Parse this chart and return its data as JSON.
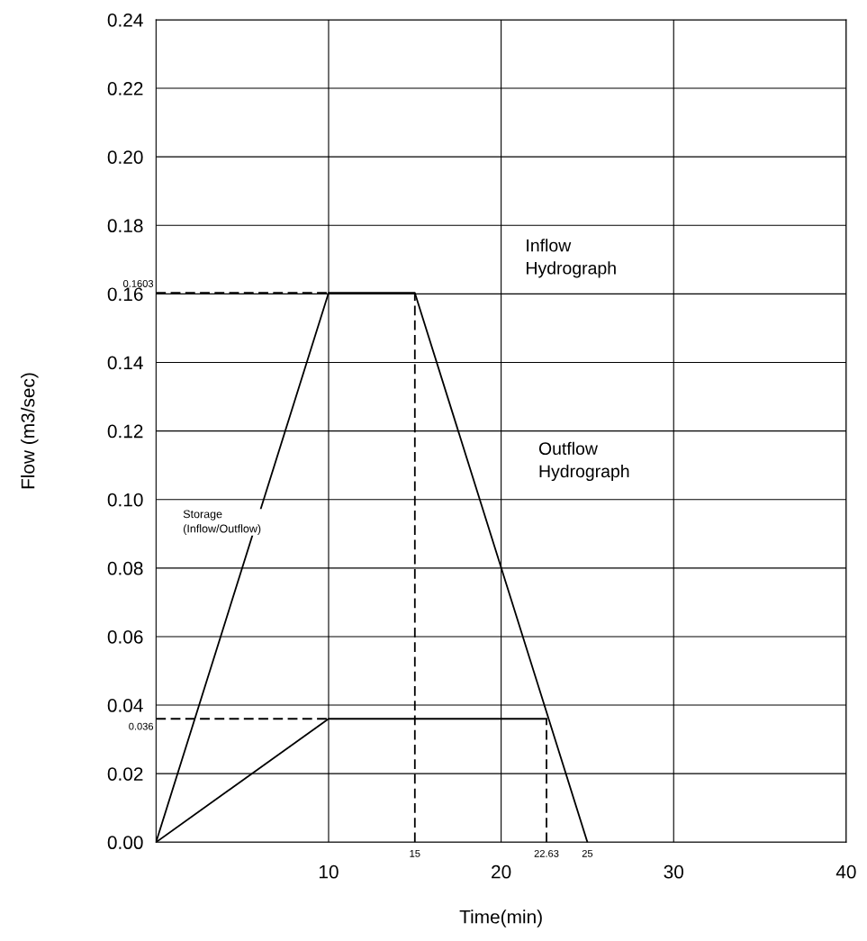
{
  "chart_data": {
    "type": "line",
    "xlabel": "Time(min)",
    "ylabel": "Flow (m3/sec)",
    "xlim": [
      0,
      40
    ],
    "xticks": [
      10,
      20,
      30,
      40
    ],
    "ylim": [
      0,
      0.24
    ],
    "yticks": [
      {
        "value": 0,
        "label": "0.00"
      },
      0.02,
      0.04,
      0.06,
      0.08,
      {
        "value": 0.1,
        "label": "0.10"
      },
      0.12,
      0.14,
      0.16,
      0.18,
      {
        "value": 0.2,
        "label": "0.20"
      },
      0.22,
      0.24
    ],
    "grid": true,
    "marker": "none",
    "series": [
      {
        "color": "#000000",
        "line_style": "solid",
        "x": [
          0,
          10,
          15,
          25
        ],
        "values": [
          0,
          0.1603,
          0.1603,
          0
        ]
      },
      {
        "color": "#000000",
        "line_style": "solid",
        "x": [
          0,
          10,
          22.63
        ],
        "values": [
          0,
          0.036,
          0.036
        ]
      },
      {
        "color": "#000000",
        "line_style": "dashed",
        "x": [
          0,
          10
        ],
        "values": [
          0.1603,
          0.1603
        ]
      },
      {
        "color": "#000000",
        "line_style": "dashed",
        "x": [
          15,
          15
        ],
        "values": [
          0,
          0.1603
        ]
      },
      {
        "color": "#000000",
        "line_style": "dashed",
        "x": [
          0,
          10
        ],
        "values": [
          0.036,
          0.036
        ]
      },
      {
        "color": "#000000",
        "line_style": "dashed",
        "x": [
          22.63,
          22.63
        ],
        "values": [
          0,
          0.036
        ]
      }
    ],
    "annotations": [
      {
        "text": "0.1603",
        "x": 0,
        "y": 0.1603
      },
      {
        "text": "0.036",
        "x": 0,
        "y": 0.036
      },
      {
        "text": "15",
        "x": 15,
        "y": 0
      },
      {
        "text": "22.63",
        "x": 22.63,
        "y": 0
      },
      {
        "text": "25",
        "x": 25,
        "y": 0
      },
      "Inflow\nHydrograph",
      "Outflow\nHydrograph",
      "Storage\n(Inflow/Outflow)"
    ]
  }
}
